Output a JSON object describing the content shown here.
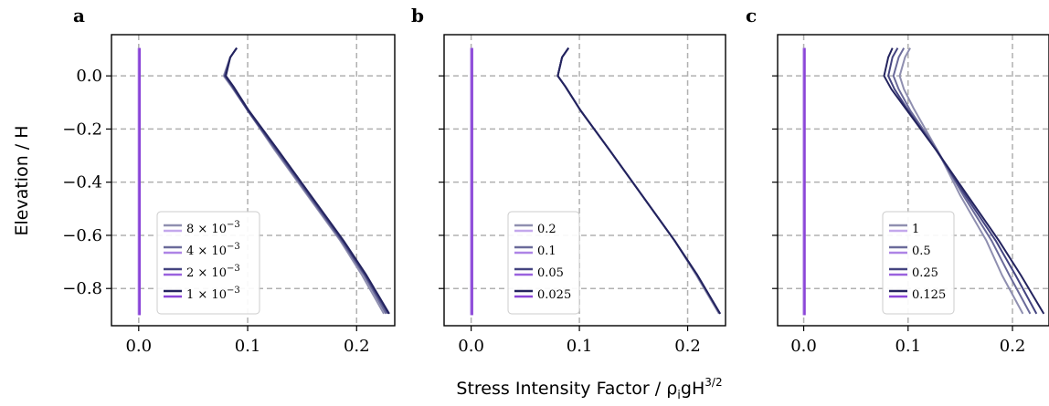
{
  "figure": {
    "ylabel": "Elevation / H",
    "xlabel": "Stress Intensity Factor / ρ",
    "xlabel_sub": "i",
    "xlabel_rest": "gH",
    "xlabel_sup": "3/2"
  },
  "chart_data": [
    {
      "type": "line",
      "panel": "a",
      "xlim": [
        -0.025,
        0.235
      ],
      "ylim": [
        -0.94,
        0.155
      ],
      "xticks": [
        0.0,
        0.1,
        0.2
      ],
      "xtick_labels": [
        "0.0",
        "0.1",
        "0.2"
      ],
      "yticks": [
        0.0,
        -0.2,
        -0.4,
        -0.6,
        -0.8
      ],
      "ytick_labels": [
        "0.0",
        "−0.2",
        "−0.4",
        "−0.6",
        "−0.8"
      ],
      "grid": true,
      "legend": "lower-left",
      "series": [
        {
          "name": "8 × 10⁻³",
          "label_base": "8 × 10",
          "label_exp": "−3",
          "color": "#8f8fb0",
          "base_color": "#c4a8ec",
          "points": [
            [
              0.09,
              0.105
            ],
            [
              0.084,
              0.07
            ],
            [
              0.078,
              0.0
            ],
            [
              0.085,
              -0.04
            ],
            [
              0.1,
              -0.13
            ],
            [
              0.125,
              -0.28
            ],
            [
              0.155,
              -0.45
            ],
            [
              0.185,
              -0.62
            ],
            [
              0.205,
              -0.75
            ],
            [
              0.225,
              -0.895
            ]
          ]
        },
        {
          "name": "4 × 10⁻³",
          "label_base": "4 × 10",
          "label_exp": "−3",
          "color": "#6b6b9a",
          "base_color": "#ae84e6",
          "points": [
            [
              0.09,
              0.105
            ],
            [
              0.084,
              0.07
            ],
            [
              0.079,
              0.0
            ],
            [
              0.086,
              -0.04
            ],
            [
              0.1,
              -0.13
            ],
            [
              0.126,
              -0.28
            ],
            [
              0.156,
              -0.45
            ],
            [
              0.186,
              -0.62
            ],
            [
              0.207,
              -0.75
            ],
            [
              0.227,
              -0.895
            ]
          ]
        },
        {
          "name": "2 × 10⁻³",
          "label_base": "2 × 10",
          "label_exp": "−3",
          "color": "#444480",
          "base_color": "#9a62de",
          "points": [
            [
              0.09,
              0.105
            ],
            [
              0.084,
              0.07
            ],
            [
              0.079,
              0.0
            ],
            [
              0.086,
              -0.04
            ],
            [
              0.1,
              -0.13
            ],
            [
              0.127,
              -0.28
            ],
            [
              0.157,
              -0.45
            ],
            [
              0.187,
              -0.62
            ],
            [
              0.208,
              -0.75
            ],
            [
              0.229,
              -0.895
            ]
          ]
        },
        {
          "name": "1 × 10⁻³",
          "label_base": "1 × 10",
          "label_exp": "−3",
          "color": "#23235e",
          "base_color": "#8a44d8",
          "points": [
            [
              0.09,
              0.105
            ],
            [
              0.084,
              0.07
            ],
            [
              0.08,
              0.0
            ],
            [
              0.087,
              -0.04
            ],
            [
              0.101,
              -0.13
            ],
            [
              0.128,
              -0.28
            ],
            [
              0.158,
              -0.45
            ],
            [
              0.188,
              -0.62
            ],
            [
              0.209,
              -0.75
            ],
            [
              0.23,
              -0.895
            ]
          ]
        }
      ]
    },
    {
      "type": "line",
      "panel": "b",
      "xlim": [
        -0.025,
        0.235
      ],
      "ylim": [
        -0.94,
        0.155
      ],
      "xticks": [
        0.0,
        0.1,
        0.2
      ],
      "xtick_labels": [
        "0.0",
        "0.1",
        "0.2"
      ],
      "yticks": [
        0.0,
        -0.2,
        -0.4,
        -0.6,
        -0.8
      ],
      "ytick_labels": [],
      "grid": true,
      "legend": "lower-left",
      "series": [
        {
          "name": "0.2",
          "label_base": "0.2",
          "label_exp": "",
          "color": "#8f8fb0",
          "base_color": "#c4a8ec",
          "points": [
            [
              0.09,
              0.105
            ],
            [
              0.084,
              0.07
            ],
            [
              0.08,
              0.0
            ],
            [
              0.087,
              -0.04
            ],
            [
              0.101,
              -0.13
            ],
            [
              0.128,
              -0.28
            ],
            [
              0.158,
              -0.45
            ],
            [
              0.188,
              -0.62
            ],
            [
              0.208,
              -0.75
            ],
            [
              0.229,
              -0.895
            ]
          ]
        },
        {
          "name": "0.1",
          "label_base": "0.1",
          "label_exp": "",
          "color": "#6b6b9a",
          "base_color": "#ae84e6",
          "points": [
            [
              0.09,
              0.105
            ],
            [
              0.084,
              0.07
            ],
            [
              0.08,
              0.0
            ],
            [
              0.087,
              -0.04
            ],
            [
              0.101,
              -0.13
            ],
            [
              0.128,
              -0.28
            ],
            [
              0.158,
              -0.45
            ],
            [
              0.188,
              -0.62
            ],
            [
              0.209,
              -0.75
            ],
            [
              0.23,
              -0.895
            ]
          ]
        },
        {
          "name": "0.05",
          "label_base": "0.05",
          "label_exp": "",
          "color": "#444480",
          "base_color": "#9a62de",
          "points": [
            [
              0.09,
              0.105
            ],
            [
              0.084,
              0.07
            ],
            [
              0.08,
              0.0
            ],
            [
              0.087,
              -0.04
            ],
            [
              0.101,
              -0.13
            ],
            [
              0.128,
              -0.28
            ],
            [
              0.158,
              -0.45
            ],
            [
              0.188,
              -0.62
            ],
            [
              0.209,
              -0.75
            ],
            [
              0.23,
              -0.895
            ]
          ]
        },
        {
          "name": "0.025",
          "label_base": "0.025",
          "label_exp": "",
          "color": "#23235e",
          "base_color": "#8a44d8",
          "points": [
            [
              0.09,
              0.105
            ],
            [
              0.084,
              0.07
            ],
            [
              0.08,
              0.0
            ],
            [
              0.087,
              -0.04
            ],
            [
              0.101,
              -0.13
            ],
            [
              0.128,
              -0.28
            ],
            [
              0.158,
              -0.45
            ],
            [
              0.188,
              -0.62
            ],
            [
              0.209,
              -0.75
            ],
            [
              0.23,
              -0.895
            ]
          ]
        }
      ]
    },
    {
      "type": "line",
      "panel": "c",
      "xlim": [
        -0.025,
        0.235
      ],
      "ylim": [
        -0.94,
        0.155
      ],
      "xticks": [
        0.0,
        0.1,
        0.2
      ],
      "xtick_labels": [
        "0.0",
        "0.1",
        "0.2"
      ],
      "yticks": [
        0.0,
        -0.2,
        -0.4,
        -0.6,
        -0.8
      ],
      "ytick_labels": [],
      "grid": true,
      "legend": "lower-left",
      "series": [
        {
          "name": "1",
          "label_base": "1",
          "label_exp": "",
          "color": "#8f8fb0",
          "base_color": "#c4a8ec",
          "points": [
            [
              0.102,
              0.105
            ],
            [
              0.097,
              0.07
            ],
            [
              0.092,
              0.0
            ],
            [
              0.096,
              -0.05
            ],
            [
              0.105,
              -0.12
            ],
            [
              0.128,
              -0.28
            ],
            [
              0.15,
              -0.45
            ],
            [
              0.175,
              -0.62
            ],
            [
              0.19,
              -0.75
            ],
            [
              0.21,
              -0.895
            ]
          ]
        },
        {
          "name": "0.5",
          "label_base": "0.5",
          "label_exp": "",
          "color": "#6b6b9a",
          "base_color": "#ae84e6",
          "points": [
            [
              0.096,
              0.105
            ],
            [
              0.091,
              0.07
            ],
            [
              0.086,
              0.0
            ],
            [
              0.091,
              -0.05
            ],
            [
              0.102,
              -0.13
            ],
            [
              0.128,
              -0.28
            ],
            [
              0.153,
              -0.45
            ],
            [
              0.18,
              -0.62
            ],
            [
              0.197,
              -0.75
            ],
            [
              0.217,
              -0.895
            ]
          ]
        },
        {
          "name": "0.25",
          "label_base": "0.25",
          "label_exp": "",
          "color": "#444480",
          "base_color": "#9a62de",
          "points": [
            [
              0.09,
              0.105
            ],
            [
              0.085,
              0.07
            ],
            [
              0.081,
              0.0
            ],
            [
              0.087,
              -0.05
            ],
            [
              0.1,
              -0.13
            ],
            [
              0.127,
              -0.28
            ],
            [
              0.155,
              -0.45
            ],
            [
              0.184,
              -0.62
            ],
            [
              0.203,
              -0.75
            ],
            [
              0.223,
              -0.895
            ]
          ]
        },
        {
          "name": "0.125",
          "label_base": "0.125",
          "label_exp": "",
          "color": "#23235e",
          "base_color": "#8a44d8",
          "points": [
            [
              0.085,
              0.105
            ],
            [
              0.081,
              0.07
            ],
            [
              0.077,
              0.0
            ],
            [
              0.084,
              -0.05
            ],
            [
              0.099,
              -0.13
            ],
            [
              0.127,
              -0.28
            ],
            [
              0.157,
              -0.45
            ],
            [
              0.187,
              -0.62
            ],
            [
              0.208,
              -0.75
            ],
            [
              0.23,
              -0.895
            ]
          ]
        }
      ]
    }
  ]
}
